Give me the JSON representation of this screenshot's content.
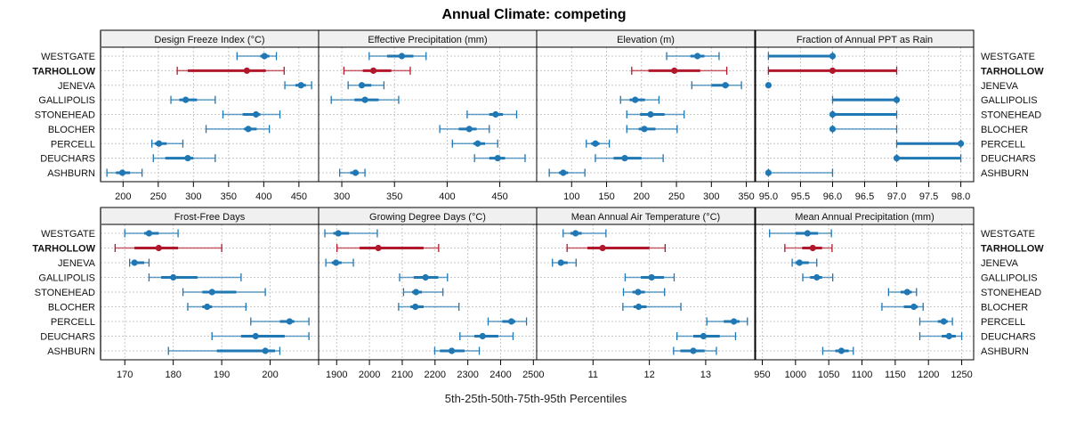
{
  "chart_data": {
    "type": "dotplot-percentile",
    "title": "Annual Climate: competing",
    "xlabel": "5th-25th-50th-75th-95th Percentiles",
    "highlight_site": "TARHOLLOW",
    "colors": {
      "default": "#1f77b4",
      "highlight": "#b2182b",
      "strip": "#f0f0f0",
      "grid": "#c8c8c8"
    },
    "sites": [
      "WESTGATE",
      "TARHOLLOW",
      "JENEVA",
      "GALLIPOLIS",
      "STONEHEAD",
      "BLOCHER",
      "PERCELL",
      "DEUCHARS",
      "ASHBURN"
    ],
    "panels": [
      {
        "name": "Design Freeze Index (°C)",
        "xlim": [
          168,
          478
        ],
        "ticks": [
          200,
          250,
          300,
          350,
          400,
          450
        ],
        "tick_labels": [
          "200",
          "250",
          "300",
          "350",
          "400",
          "450"
        ],
        "values": [
          [
            362,
            395,
            401,
            408,
            418
          ],
          [
            277,
            292,
            376,
            403,
            429
          ],
          [
            430,
            445,
            453,
            460,
            468
          ],
          [
            268,
            280,
            289,
            305,
            331
          ],
          [
            342,
            370,
            389,
            395,
            423
          ],
          [
            318,
            372,
            378,
            390,
            408
          ],
          [
            241,
            245,
            251,
            262,
            285
          ],
          [
            243,
            260,
            292,
            300,
            331
          ],
          [
            177,
            190,
            199,
            210,
            227
          ]
        ]
      },
      {
        "name": "Effective Precipitation (mm)",
        "xlim": [
          278,
          485
        ],
        "ticks": [
          300,
          350,
          400,
          450
        ],
        "tick_labels": [
          "300",
          "350",
          "400",
          "450"
        ],
        "values": [
          [
            326,
            343,
            357,
            368,
            380
          ],
          [
            302,
            320,
            330,
            347,
            365
          ],
          [
            306,
            318,
            319,
            328,
            340
          ],
          [
            290,
            312,
            322,
            335,
            354
          ],
          [
            419,
            440,
            446,
            453,
            466
          ],
          [
            393,
            411,
            421,
            428,
            440
          ],
          [
            405,
            425,
            429,
            436,
            448
          ],
          [
            426,
            440,
            448,
            455,
            474
          ],
          [
            298,
            308,
            313,
            316,
            322
          ]
        ]
      },
      {
        "name": "Elevation (m)",
        "xlim": [
          50,
          362
        ],
        "ticks": [
          100,
          150,
          200,
          250,
          300,
          350
        ],
        "tick_labels": [
          "100",
          "150",
          "200",
          "250",
          "300",
          "350"
        ],
        "values": [
          [
            236,
            270,
            280,
            290,
            311
          ],
          [
            186,
            210,
            247,
            284,
            322
          ],
          [
            272,
            300,
            320,
            325,
            343
          ],
          [
            170,
            183,
            191,
            205,
            225
          ],
          [
            179,
            198,
            213,
            233,
            261
          ],
          [
            179,
            196,
            204,
            220,
            251
          ],
          [
            121,
            128,
            134,
            140,
            154
          ],
          [
            134,
            160,
            176,
            200,
            231
          ],
          [
            68,
            82,
            88,
            95,
            119
          ]
        ]
      },
      {
        "name": "Fraction of Annual PPT as Rain",
        "xlim": [
          94.8,
          98.2
        ],
        "ticks": [
          95.0,
          95.5,
          96.0,
          96.5,
          97.0,
          97.5,
          98.0
        ],
        "tick_labels": [
          "95.0",
          "95.5",
          "96.0",
          "96.5",
          "97.0",
          "97.5",
          "98.0"
        ],
        "values": [
          [
            95,
            95,
            96,
            96,
            96
          ],
          [
            95,
            95,
            96,
            97,
            97
          ],
          [
            95,
            95,
            95,
            95,
            95
          ],
          [
            96,
            96,
            97,
            97,
            97
          ],
          [
            96,
            96,
            96,
            97,
            97
          ],
          [
            96,
            96,
            96,
            96,
            97
          ],
          [
            97,
            97,
            98,
            98,
            98
          ],
          [
            97,
            97,
            97,
            98,
            98
          ],
          [
            95,
            95,
            95,
            95,
            96
          ]
        ]
      },
      {
        "name": "Frost-Free Days",
        "xlim": [
          165,
          210
        ],
        "ticks": [
          170,
          180,
          190,
          200,
          210
        ],
        "tick_labels": [
          "170",
          "180",
          "190",
          "200",
          ""
        ],
        "values": [
          [
            170,
            174,
            175,
            177,
            181
          ],
          [
            168,
            172,
            177,
            181,
            190
          ],
          [
            171,
            172,
            172,
            174,
            175
          ],
          [
            175,
            177.5,
            180,
            185,
            194
          ],
          [
            182,
            186,
            188,
            193,
            199
          ],
          [
            183,
            186,
            187,
            188,
            195
          ],
          [
            196,
            202,
            204,
            205,
            208
          ],
          [
            188,
            194,
            197,
            203,
            208
          ],
          [
            179,
            189,
            199,
            201,
            202
          ]
        ]
      },
      {
        "name": "Growing Degree Days (°C)",
        "xlim": [
          1845,
          2510
        ],
        "ticks": [
          1900,
          2000,
          2100,
          2200,
          2300,
          2400,
          2500
        ],
        "tick_labels": [
          "1900",
          "2000",
          "2100",
          "2200",
          "2300",
          "2400",
          "2500"
        ],
        "values": [
          [
            1864,
            1890,
            1905,
            1938,
            2024
          ],
          [
            1901,
            1970,
            2027,
            2165,
            2211
          ],
          [
            1867,
            1885,
            1898,
            1915,
            1951
          ],
          [
            2092,
            2135,
            2171,
            2210,
            2238
          ],
          [
            2104,
            2130,
            2142,
            2160,
            2224
          ],
          [
            2089,
            2125,
            2140,
            2165,
            2273
          ],
          [
            2362,
            2405,
            2433,
            2445,
            2479
          ],
          [
            2276,
            2320,
            2345,
            2393,
            2438
          ],
          [
            2199,
            2215,
            2251,
            2290,
            2335
          ]
        ]
      },
      {
        "name": "Mean Annual Air Temperature (°C)",
        "xlim": [
          10.0,
          13.87
        ],
        "ticks": [
          11,
          12,
          13
        ],
        "tick_labels": [
          "11",
          "12",
          "13"
        ],
        "values": [
          [
            10.47,
            10.6,
            10.69,
            10.8,
            11.23
          ],
          [
            10.54,
            10.9,
            11.17,
            12.0,
            12.28
          ],
          [
            10.28,
            10.38,
            10.43,
            10.55,
            10.7
          ],
          [
            11.57,
            11.85,
            12.04,
            12.26,
            12.44
          ],
          [
            11.54,
            11.7,
            11.8,
            11.92,
            12.27
          ],
          [
            11.53,
            11.72,
            11.81,
            11.95,
            12.56
          ],
          [
            13.02,
            13.32,
            13.5,
            13.6,
            13.74
          ],
          [
            12.49,
            12.78,
            12.96,
            13.25,
            13.53
          ],
          [
            12.43,
            12.55,
            12.78,
            12.98,
            13.19
          ]
        ]
      },
      {
        "name": "Mean Annual Precipitation (mm)",
        "xlim": [
          940,
          1268
        ],
        "ticks": [
          950,
          1000,
          1050,
          1100,
          1150,
          1200,
          1250
        ],
        "tick_labels": [
          "950",
          "1000",
          "1050",
          "1100",
          "1150",
          "1200",
          "1250"
        ],
        "values": [
          [
            961,
            1000,
            1018,
            1034,
            1054
          ],
          [
            984,
            1010,
            1026,
            1040,
            1055
          ],
          [
            995,
            1000,
            1006,
            1020,
            1032
          ],
          [
            1011,
            1022,
            1032,
            1040,
            1056
          ],
          [
            1140,
            1158,
            1168,
            1175,
            1182
          ],
          [
            1130,
            1163,
            1178,
            1184,
            1192
          ],
          [
            1187,
            1214,
            1223,
            1229,
            1236
          ],
          [
            1187,
            1220,
            1231,
            1241,
            1250
          ],
          [
            1041,
            1060,
            1069,
            1080,
            1087
          ]
        ]
      }
    ]
  }
}
